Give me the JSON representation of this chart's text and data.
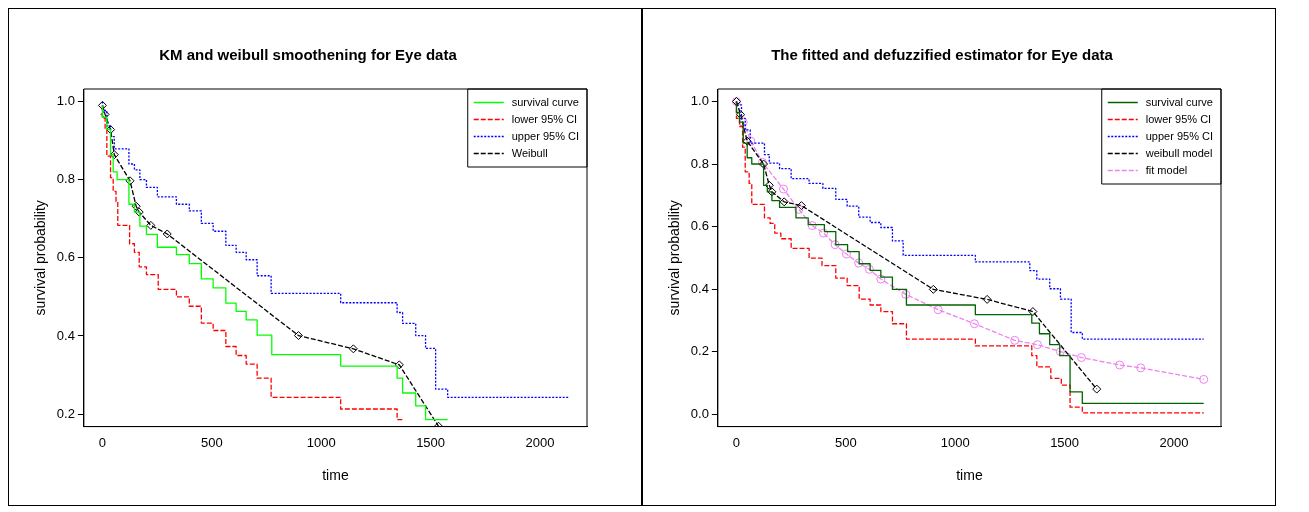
{
  "chart_data": [
    {
      "type": "step",
      "title": "KM and weibull smoothening for Eye data",
      "xlabel": "time",
      "ylabel": "survival probability",
      "xlim": [
        -85,
        2215
      ],
      "ylim": [
        0.168,
        1.032
      ],
      "xticks": [
        0,
        500,
        1000,
        1500,
        2000
      ],
      "yticks": [
        {
          "value": 0.2,
          "label": "0.2"
        },
        {
          "value": 0.4,
          "label": "0.4"
        },
        {
          "value": 0.6,
          "label": "0.6"
        },
        {
          "value": 0.8,
          "label": "0.8"
        },
        {
          "value": 1,
          "label": "1.0"
        }
      ],
      "grid": false,
      "legend": "top right",
      "series": [
        {
          "name": "survival curve",
          "type": "step",
          "color": "#00ff00",
          "line_style": "solid",
          "marker": "none",
          "x": [
            0,
            20,
            37,
            49,
            67,
            121,
            146,
            171,
            201,
            251,
            338,
            397,
            452,
            506,
            564,
            611,
            657,
            707,
            774,
            1089,
            1347,
            1372,
            1432,
            1477,
            1523,
            1578
          ],
          "values": [
            0.99,
            0.96,
            0.928,
            0.864,
            0.82,
            0.8,
            0.737,
            0.717,
            0.681,
            0.66,
            0.627,
            0.608,
            0.585,
            0.546,
            0.523,
            0.484,
            0.463,
            0.441,
            0.402,
            0.352,
            0.323,
            0.292,
            0.254,
            0.221,
            0.186,
            0.186
          ]
        },
        {
          "name": "lower 95% CI",
          "type": "step",
          "color": "#ff0000",
          "line_style": "dashed",
          "marker": "none",
          "x": [
            0,
            12,
            20,
            37,
            49,
            62,
            70,
            124,
            146,
            168,
            201,
            255,
            338,
            397,
            452,
            506,
            564,
            611,
            657,
            707,
            771,
            1089,
            1347,
            1372
          ],
          "values": [
            0.99,
            0.957,
            0.93,
            0.86,
            0.805,
            0.77,
            0.744,
            0.683,
            0.636,
            0.614,
            0.577,
            0.557,
            0.519,
            0.5,
            0.476,
            0.433,
            0.414,
            0.373,
            0.35,
            0.328,
            0.292,
            0.243,
            0.213,
            0.186
          ]
        },
        {
          "name": "upper 95% CI",
          "type": "step",
          "color": "#0000ff",
          "line_style": "dotted",
          "marker": "none",
          "x": [
            0,
            20,
            37,
            54,
            121,
            146,
            171,
            201,
            251,
            338,
            397,
            452,
            506,
            564,
            611,
            657,
            707,
            771,
            1089,
            1347,
            1372,
            1432,
            1477,
            1523,
            1578,
            1745,
            2131
          ],
          "values": [
            1,
            0.977,
            0.937,
            0.91,
            0.879,
            0.84,
            0.825,
            0.8,
            0.78,
            0.756,
            0.737,
            0.72,
            0.688,
            0.668,
            0.632,
            0.614,
            0.595,
            0.554,
            0.509,
            0.485,
            0.46,
            0.432,
            0.401,
            0.368,
            0.264,
            0.243,
            0.243
          ]
        },
        {
          "name": "Weibull",
          "type": "line",
          "color": "#000000",
          "line_style": "dashed",
          "marker": "diamond",
          "x": [
            0,
            12,
            37,
            54,
            126,
            154,
            168,
            221,
            296,
            896,
            1147,
            1357,
            1536
          ],
          "values": [
            0.99,
            0.967,
            0.928,
            0.864,
            0.797,
            0.732,
            0.717,
            0.683,
            0.661,
            0.401,
            0.367,
            0.326,
            0.169
          ]
        }
      ]
    },
    {
      "type": "step",
      "title": "The fitted and defuzzified estimator for Eye data",
      "xlabel": "time",
      "ylabel": "survival probability",
      "xlim": [
        -85,
        2215
      ],
      "ylim": [
        -0.04,
        1.04
      ],
      "xticks": [
        0,
        500,
        1000,
        1500,
        2000
      ],
      "yticks": [
        {
          "value": 0,
          "label": "0.0"
        },
        {
          "value": 0.2,
          "label": "0.2"
        },
        {
          "value": 0.4,
          "label": "0.4"
        },
        {
          "value": 0.6,
          "label": "0.6"
        },
        {
          "value": 0.8,
          "label": "0.8"
        },
        {
          "value": 1,
          "label": "1.0"
        }
      ],
      "grid": false,
      "legend": "top right",
      "series": [
        {
          "name": "survival curve",
          "type": "step",
          "color": "#006400",
          "line_style": "solid",
          "marker": "none",
          "x": [
            0,
            14,
            31,
            49,
            70,
            124,
            141,
            162,
            197,
            272,
            328,
            402,
            454,
            508,
            561,
            611,
            660,
            713,
            777,
            1092,
            1350,
            1385,
            1432,
            1478,
            1525,
            1581,
            1752,
            2136
          ],
          "values": [
            1,
            0.965,
            0.934,
            0.867,
            0.82,
            0.8,
            0.732,
            0.711,
            0.683,
            0.661,
            0.628,
            0.606,
            0.584,
            0.542,
            0.52,
            0.481,
            0.46,
            0.438,
            0.399,
            0.349,
            0.318,
            0.291,
            0.257,
            0.222,
            0.187,
            0.071,
            0.034,
            0.034
          ]
        },
        {
          "name": "lower 95% CI",
          "type": "step",
          "color": "#ff0000",
          "line_style": "dashed",
          "marker": "none",
          "x": [
            0,
            14,
            28,
            40,
            58,
            70,
            128,
            154,
            175,
            203,
            250,
            332,
            391,
            454,
            506,
            561,
            611,
            660,
            713,
            777,
            1092,
            1350,
            1373,
            1437,
            1485,
            1525,
            1581,
            1752,
            2136
          ],
          "values": [
            1,
            0.946,
            0.92,
            0.854,
            0.775,
            0.738,
            0.671,
            0.628,
            0.61,
            0.579,
            0.561,
            0.53,
            0.499,
            0.475,
            0.435,
            0.411,
            0.368,
            0.349,
            0.328,
            0.289,
            0.24,
            0.218,
            0.187,
            0.151,
            0.114,
            0.093,
            0.022,
            0.004,
            0.004
          ]
        },
        {
          "name": "upper 95% CI",
          "type": "step",
          "color": "#0000ff",
          "line_style": "dotted",
          "marker": "none",
          "x": [
            0,
            23,
            40,
            63,
            128,
            150,
            197,
            250,
            332,
            395,
            454,
            506,
            559,
            611,
            660,
            713,
            762,
            1092,
            1341,
            1373,
            1432,
            1481,
            1530,
            1581,
            1752,
            2136
          ],
          "values": [
            1,
            0.989,
            0.946,
            0.909,
            0.867,
            0.83,
            0.803,
            0.785,
            0.753,
            0.738,
            0.722,
            0.687,
            0.665,
            0.63,
            0.613,
            0.597,
            0.554,
            0.508,
            0.487,
            0.459,
            0.432,
            0.401,
            0.368,
            0.261,
            0.24,
            0.24
          ]
        },
        {
          "name": "weibull model",
          "type": "line",
          "color": "#000000",
          "line_style": "dashed",
          "marker": "diamond",
          "x": [
            0,
            19,
            49,
            124,
            150,
            162,
            218,
            297,
            900,
            1146,
            1355,
            1647
          ],
          "values": [
            1,
            0.958,
            0.873,
            0.8,
            0.732,
            0.711,
            0.679,
            0.667,
            0.399,
            0.367,
            0.328,
            0.08
          ]
        },
        {
          "name": "fit model",
          "type": "line",
          "color": "#ee82ee",
          "line_style": "dashed",
          "marker": "circle",
          "x": [
            0,
            31,
            66,
            119,
            215,
            285,
            346,
            398,
            451,
            503,
            559,
            608,
            660,
            774,
            922,
            1088,
            1272,
            1376,
            1481,
            1577,
            1752,
            1848,
            2136
          ],
          "values": [
            1,
            0.934,
            0.873,
            0.805,
            0.72,
            0.655,
            0.603,
            0.579,
            0.542,
            0.512,
            0.483,
            0.463,
            0.432,
            0.383,
            0.334,
            0.289,
            0.236,
            0.222,
            0.2,
            0.181,
            0.157,
            0.148,
            0.111
          ]
        }
      ]
    }
  ]
}
